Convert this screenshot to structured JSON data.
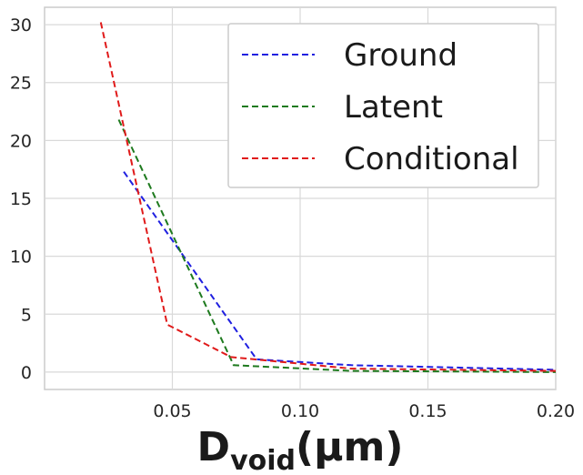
{
  "chart_data": {
    "type": "line",
    "xlabel_main": "D",
    "xlabel_sub": "void",
    "xlabel_unit": "(μm)",
    "xlim": [
      0.0,
      0.2
    ],
    "ylim": [
      -1.5,
      31.5
    ],
    "xticks": [
      0.05,
      0.1,
      0.15,
      0.2
    ],
    "xtick_labels": [
      "0.05",
      "0.10",
      "0.15",
      "0.20"
    ],
    "yticks": [
      0,
      5,
      10,
      15,
      20,
      25,
      30
    ],
    "ytick_labels": [
      "0",
      "5",
      "10",
      "15",
      "20",
      "25",
      "30"
    ],
    "grid": true,
    "legend_position": "top-right",
    "series": [
      {
        "name": "Ground",
        "color": "#1f1fe0",
        "dash": "dashed",
        "x": [
          0.031,
          0.083,
          0.12,
          0.2
        ],
        "y": [
          17.3,
          1.1,
          0.6,
          0.2
        ]
      },
      {
        "name": "Latent",
        "color": "#1e7a1e",
        "dash": "dashed",
        "x": [
          0.029,
          0.074,
          0.12,
          0.2
        ],
        "y": [
          21.8,
          0.6,
          0.1,
          0.0
        ]
      },
      {
        "name": "Conditional",
        "color": "#e01a1a",
        "dash": "dashed",
        "x": [
          0.022,
          0.048,
          0.073,
          0.12,
          0.2
        ],
        "y": [
          30.2,
          4.1,
          1.3,
          0.3,
          0.1
        ]
      }
    ]
  }
}
